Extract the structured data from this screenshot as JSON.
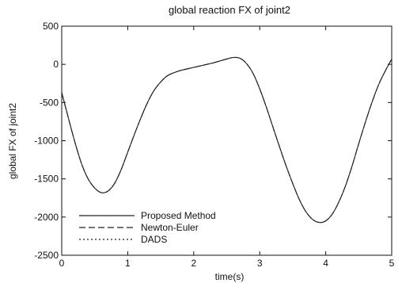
{
  "chart_data": {
    "type": "line",
    "title": "global reaction FX of joint2",
    "xlabel": "time(s)",
    "ylabel": "global FX of joint2",
    "xlim": [
      0,
      5
    ],
    "ylim": [
      -2500,
      500
    ],
    "x_ticks": [
      0,
      1,
      2,
      3,
      4,
      5
    ],
    "y_ticks": [
      500,
      0,
      -500,
      -1000,
      -1500,
      -2000,
      -2500
    ],
    "x_tick_labels": [
      "0",
      "1",
      "2",
      "3",
      "4",
      "5"
    ],
    "y_tick_labels": [
      "500",
      "0",
      "-500",
      "-1000",
      "-1500",
      "-2000",
      "-2500"
    ],
    "grid": false,
    "legend_position": "bottom-left",
    "series": [
      {
        "name": "Proposed Method",
        "style": "solid",
        "color": "#222222",
        "x": [
          0,
          0.1,
          0.2,
          0.3,
          0.4,
          0.5,
          0.6,
          0.7,
          0.8,
          0.9,
          1.0,
          1.1,
          1.2,
          1.3,
          1.4,
          1.5,
          1.6,
          1.7,
          1.8,
          1.9,
          2.0,
          2.1,
          2.2,
          2.3,
          2.4,
          2.5,
          2.6,
          2.7,
          2.8,
          2.9,
          3.0,
          3.1,
          3.2,
          3.3,
          3.4,
          3.5,
          3.6,
          3.7,
          3.8,
          3.9,
          4.0,
          4.1,
          4.2,
          4.3,
          4.4,
          4.5,
          4.6,
          4.7,
          4.8,
          4.9,
          5.0
        ],
        "y": [
          -370,
          -700,
          -1020,
          -1300,
          -1500,
          -1620,
          -1680,
          -1660,
          -1560,
          -1380,
          -1150,
          -920,
          -700,
          -500,
          -340,
          -230,
          -150,
          -110,
          -80,
          -60,
          -40,
          -20,
          0,
          20,
          45,
          70,
          90,
          80,
          10,
          -120,
          -320,
          -560,
          -820,
          -1080,
          -1330,
          -1560,
          -1770,
          -1930,
          -2030,
          -2070,
          -2050,
          -1960,
          -1800,
          -1590,
          -1330,
          -1040,
          -760,
          -500,
          -270,
          -90,
          70
        ]
      },
      {
        "name": "Newton-Euler",
        "style": "dashed",
        "color": "#222222",
        "x": [
          0,
          0.1,
          0.2,
          0.3,
          0.4,
          0.5,
          0.6,
          0.7,
          0.8,
          0.9,
          1.0,
          1.1,
          1.2,
          1.3,
          1.4,
          1.5,
          1.6,
          1.7,
          1.8,
          1.9,
          2.0,
          2.1,
          2.2,
          2.3,
          2.4,
          2.5,
          2.6,
          2.7,
          2.8,
          2.9,
          3.0,
          3.1,
          3.2,
          3.3,
          3.4,
          3.5,
          3.6,
          3.7,
          3.8,
          3.9,
          4.0,
          4.1,
          4.2,
          4.3,
          4.4,
          4.5,
          4.6,
          4.7,
          4.8,
          4.9,
          5.0
        ],
        "y": [
          -370,
          -700,
          -1020,
          -1300,
          -1500,
          -1620,
          -1680,
          -1660,
          -1560,
          -1380,
          -1150,
          -920,
          -700,
          -500,
          -340,
          -230,
          -150,
          -110,
          -80,
          -60,
          -40,
          -20,
          0,
          20,
          45,
          70,
          90,
          80,
          10,
          -120,
          -320,
          -560,
          -820,
          -1080,
          -1330,
          -1560,
          -1770,
          -1930,
          -2030,
          -2070,
          -2050,
          -1960,
          -1800,
          -1590,
          -1330,
          -1040,
          -760,
          -500,
          -270,
          -90,
          70
        ]
      },
      {
        "name": "DADS",
        "style": "dotted",
        "color": "#222222",
        "x": [
          0,
          0.1,
          0.2,
          0.3,
          0.4,
          0.5,
          0.6,
          0.7,
          0.8,
          0.9,
          1.0,
          1.1,
          1.2,
          1.3,
          1.4,
          1.5,
          1.6,
          1.7,
          1.8,
          1.9,
          2.0,
          2.1,
          2.2,
          2.3,
          2.4,
          2.5,
          2.6,
          2.7,
          2.8,
          2.9,
          3.0,
          3.1,
          3.2,
          3.3,
          3.4,
          3.5,
          3.6,
          3.7,
          3.8,
          3.9,
          4.0,
          4.1,
          4.2,
          4.3,
          4.4,
          4.5,
          4.6,
          4.7,
          4.8,
          4.9,
          5.0
        ],
        "y": [
          -370,
          -700,
          -1020,
          -1300,
          -1500,
          -1620,
          -1680,
          -1660,
          -1560,
          -1380,
          -1150,
          -920,
          -700,
          -500,
          -340,
          -230,
          -150,
          -110,
          -80,
          -60,
          -40,
          -20,
          0,
          20,
          45,
          70,
          90,
          80,
          10,
          -120,
          -320,
          -560,
          -820,
          -1080,
          -1330,
          -1560,
          -1770,
          -1930,
          -2030,
          -2070,
          -2050,
          -1960,
          -1800,
          -1590,
          -1330,
          -1040,
          -760,
          -500,
          -270,
          -90,
          70
        ]
      }
    ]
  }
}
